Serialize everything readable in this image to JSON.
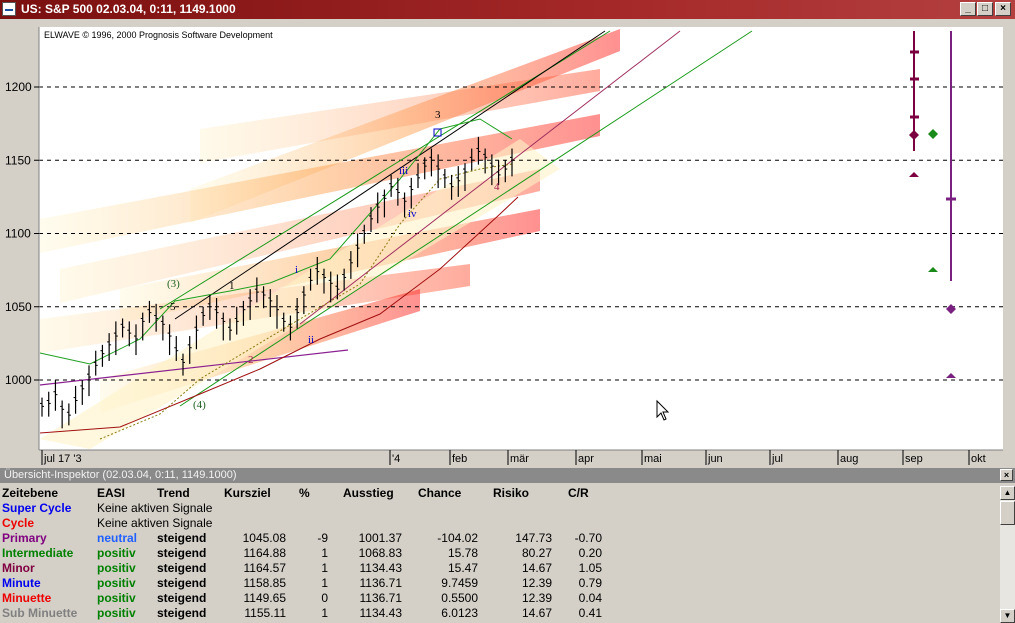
{
  "window": {
    "title": "US: S&P 500  02.03.04, 0:11, 1149.1000",
    "buttons": {
      "minimize": "_",
      "maximize": "□",
      "close": "×"
    }
  },
  "chart_data": {
    "type": "candlestick",
    "copyright": "ELWAVE © 1996, 2000 Prognosis Software Development",
    "y_ticks": [
      1200,
      1150,
      1100,
      1050,
      1000
    ],
    "ylim": [
      960,
      1225
    ],
    "y_tick_labels": [
      "1200",
      "1150",
      "1100",
      "1050",
      "1000"
    ],
    "x_labels": [
      "jul 17 '3",
      "'4",
      "feb",
      "mär",
      "apr",
      "mai",
      "jun",
      "jul",
      "aug",
      "sep",
      "okt"
    ],
    "price_series": {
      "start": 1000,
      "points": [
        982,
        984,
        990,
        980,
        976,
        986,
        994,
        1002,
        1010,
        1018,
        1024,
        1030,
        1036,
        1032,
        1028,
        1040,
        1046,
        1042,
        1038,
        1030,
        1020,
        1012,
        1022,
        1034,
        1044,
        1050,
        1046,
        1040,
        1034,
        1040,
        1048,
        1054,
        1060,
        1058,
        1054,
        1048,
        1040,
        1036,
        1046,
        1058,
        1068,
        1074,
        1070,
        1066,
        1062,
        1070,
        1080,
        1090,
        1100,
        1110,
        1118,
        1124,
        1132,
        1128,
        1122,
        1130,
        1138,
        1146,
        1150,
        1144,
        1138,
        1132,
        1136,
        1142,
        1150,
        1156,
        1152,
        1146,
        1140,
        1144,
        1150
      ]
    },
    "wave_labels": [
      "(3)",
      "5",
      "1",
      "2",
      "(4)",
      "i",
      "ii",
      "iii",
      "iv",
      "3",
      "4"
    ],
    "forecast_markers": {
      "maroon": [
        1225,
        1205,
        1177,
        1165,
        1135
      ],
      "green": [
        1165,
        1070
      ],
      "purple_line_points": [
        1220,
        1120,
        1045,
        1002
      ]
    }
  },
  "inspector": {
    "title": "Übersicht-Inspektor (02.03.04, 0:11, 1149.1000)",
    "close": "×",
    "headers": [
      "Zeitebene",
      "EASI",
      "Trend",
      "Kursziel",
      "%",
      "Ausstieg",
      "Chance",
      "Risiko",
      "C/R"
    ],
    "rows": [
      {
        "name": "Super Cycle",
        "color": "#0000ee",
        "easi": "Keine aktiven Signale",
        "easi_color": "#000000"
      },
      {
        "name": "Cycle",
        "color": "#ee0000",
        "easi": "Keine aktiven Signale",
        "easi_color": "#000000"
      },
      {
        "name": "Primary",
        "color": "#800080",
        "easi": "neutral",
        "easi_color": "#2060ff",
        "trend": "steigend",
        "kursziel": "1045.08",
        "pct": "-9",
        "ausstieg": "1001.37",
        "chance": "-104.02",
        "risiko": "147.73",
        "cr": "-0.70"
      },
      {
        "name": "Intermediate",
        "color": "#008000",
        "easi": "positiv",
        "easi_color": "#008000",
        "trend": "steigend",
        "kursziel": "1164.88",
        "pct": "1",
        "ausstieg": "1068.83",
        "chance": "15.78",
        "risiko": "80.27",
        "cr": "0.20"
      },
      {
        "name": "Minor",
        "color": "#800040",
        "easi": "positiv",
        "easi_color": "#008000",
        "trend": "steigend",
        "kursziel": "1164.57",
        "pct": "1",
        "ausstieg": "1134.43",
        "chance": "15.47",
        "risiko": "14.67",
        "cr": "1.05"
      },
      {
        "name": "Minute",
        "color": "#0000ee",
        "easi": "positiv",
        "easi_color": "#008000",
        "trend": "steigend",
        "kursziel": "1158.85",
        "pct": "1",
        "ausstieg": "1136.71",
        "chance": "9.7459",
        "risiko": "12.39",
        "cr": "0.79"
      },
      {
        "name": "Minuette",
        "color": "#ee0000",
        "easi": "positiv",
        "easi_color": "#008000",
        "trend": "steigend",
        "kursziel": "1149.65",
        "pct": "0",
        "ausstieg": "1136.71",
        "chance": "0.5500",
        "risiko": "12.39",
        "cr": "0.04"
      },
      {
        "name": "Sub Minuette",
        "color": "#808080",
        "easi": "positiv",
        "easi_color": "#008000",
        "trend": "steigend",
        "kursziel": "1155.11",
        "pct": "1",
        "ausstieg": "1134.43",
        "chance": "6.0123",
        "risiko": "14.67",
        "cr": "0.41"
      }
    ]
  },
  "scrollbar": {
    "up": "▲",
    "down": "▼"
  }
}
